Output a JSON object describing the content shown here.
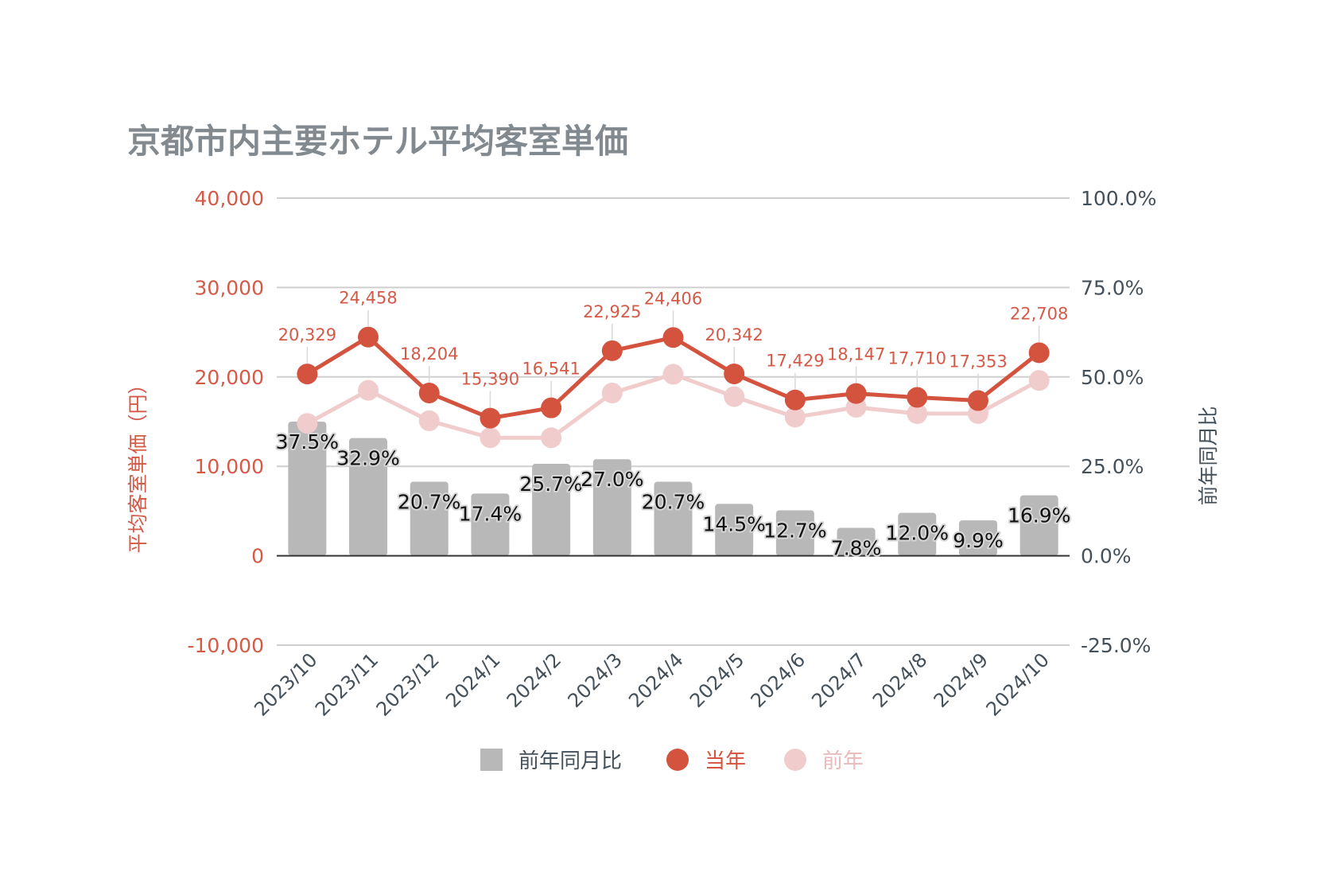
{
  "chart_data": {
    "type": "combo-bar-line",
    "title": "京都市内主要ホテル平均客室単価",
    "categories": [
      "2023/10",
      "2023/11",
      "2023/12",
      "2024/1",
      "2024/2",
      "2024/3",
      "2024/4",
      "2024/5",
      "2024/6",
      "2024/7",
      "2024/8",
      "2024/9",
      "2024/10"
    ],
    "series": [
      {
        "name": "前年同月比",
        "kind": "bar",
        "axis": "right",
        "color": "#b8b8b8",
        "values": [
          37.5,
          32.9,
          20.7,
          17.4,
          25.7,
          27.0,
          20.7,
          14.5,
          12.7,
          7.8,
          12.0,
          9.9,
          16.9
        ],
        "labels": [
          "37.5%",
          "32.9%",
          "20.7%",
          "17.4%",
          "25.7%",
          "27.0%",
          "20.7%",
          "14.5%",
          "12.7%",
          "7.8%",
          "12.0%",
          "9.9%",
          "16.9%"
        ]
      },
      {
        "name": "当年",
        "kind": "line",
        "axis": "left",
        "color": "#d4533f",
        "values": [
          20329,
          24458,
          18204,
          15390,
          16541,
          22925,
          24406,
          20342,
          17429,
          18147,
          17710,
          17353,
          22708
        ],
        "labels": [
          "20,329",
          "24,458",
          "18,204",
          "15,390",
          "16,541",
          "22,925",
          "24,406",
          "20,342",
          "17,429",
          "18,147",
          "17,710",
          "17,353",
          "22,708"
        ]
      },
      {
        "name": "前年",
        "kind": "line",
        "axis": "left",
        "color": "#f0cccc",
        "values": [
          14800,
          18500,
          15100,
          13200,
          13200,
          18200,
          20300,
          17800,
          15500,
          16600,
          15900,
          15900,
          19600
        ]
      }
    ],
    "left_axis": {
      "label": "平均客室単価（円）",
      "min": -10000,
      "max": 40000,
      "ticks": [
        40000,
        30000,
        20000,
        10000,
        0,
        -10000
      ],
      "tick_labels": [
        "40,000",
        "30,000",
        "20,000",
        "10,000",
        "0",
        "-10,000"
      ]
    },
    "right_axis": {
      "label": "前年同月比",
      "min": -25,
      "max": 100,
      "ticks": [
        100,
        75,
        50,
        25,
        0,
        -25
      ],
      "tick_labels": [
        "100.0%",
        "75.0%",
        "50.0%",
        "25.0%",
        "0.0%",
        "-25.0%"
      ]
    },
    "grid": true,
    "legend": "bottom"
  }
}
